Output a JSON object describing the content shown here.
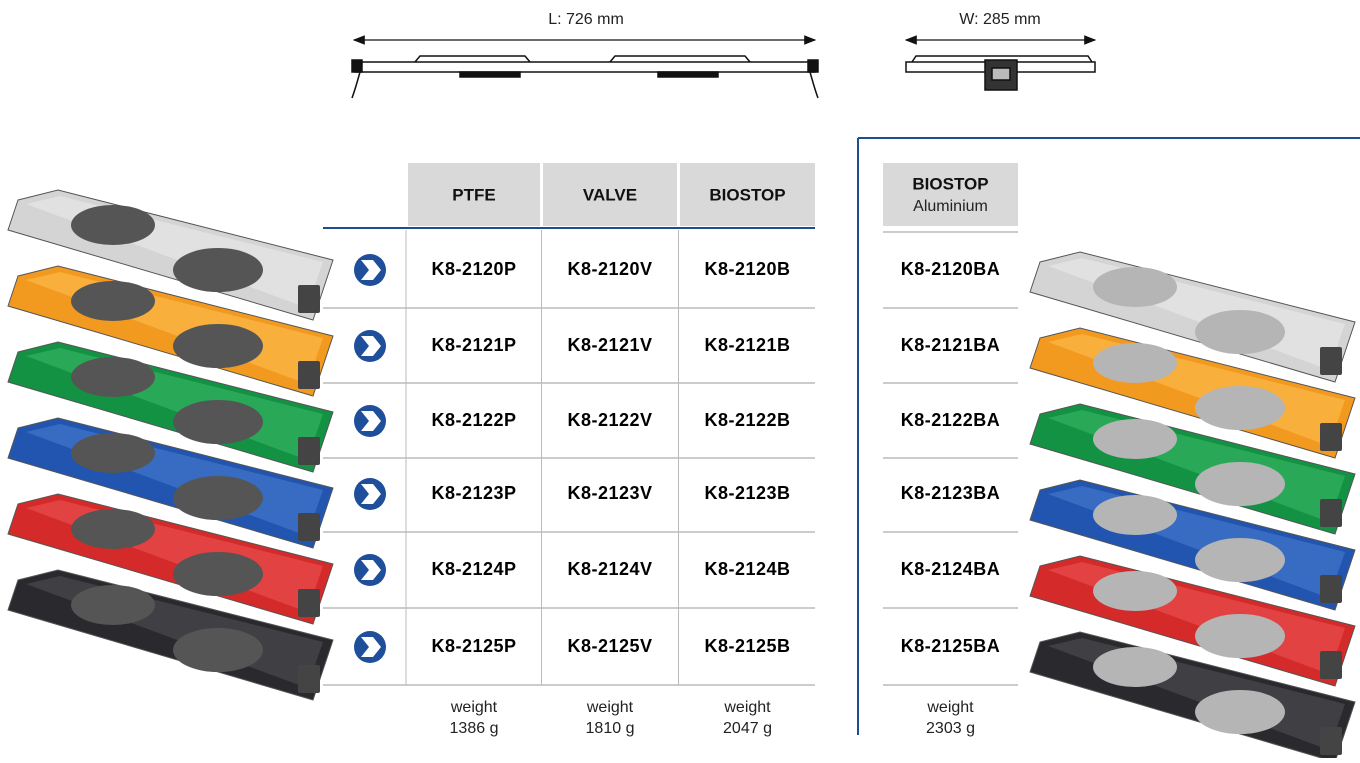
{
  "dimensions": {
    "length": "L: 726 mm",
    "width": "W: 285 mm"
  },
  "table": {
    "headers": [
      "PTFE",
      "VALVE",
      "BIOSTOP"
    ],
    "rows": [
      [
        "K8-2120P",
        "K8-2120V",
        "K8-2120B"
      ],
      [
        "K8-2121P",
        "K8-2121V",
        "K8-2121B"
      ],
      [
        "K8-2122P",
        "K8-2122V",
        "K8-2122B"
      ],
      [
        "K8-2123P",
        "K8-2123V",
        "K8-2123B"
      ],
      [
        "K8-2124P",
        "K8-2124V",
        "K8-2124B"
      ],
      [
        "K8-2125P",
        "K8-2125V",
        "K8-2125B"
      ]
    ],
    "weights": [
      [
        "weight",
        "1386 g"
      ],
      [
        "weight",
        "1810 g"
      ],
      [
        "weight",
        "2047 g"
      ]
    ]
  },
  "aluminium": {
    "header": "BIOSTOP",
    "subheader": "Aluminium",
    "rows": [
      "K8-2120BA",
      "K8-2121BA",
      "K8-2122BA",
      "K8-2123BA",
      "K8-2124BA",
      "K8-2125BA"
    ],
    "weight": [
      "weight",
      "2303 g"
    ]
  }
}
